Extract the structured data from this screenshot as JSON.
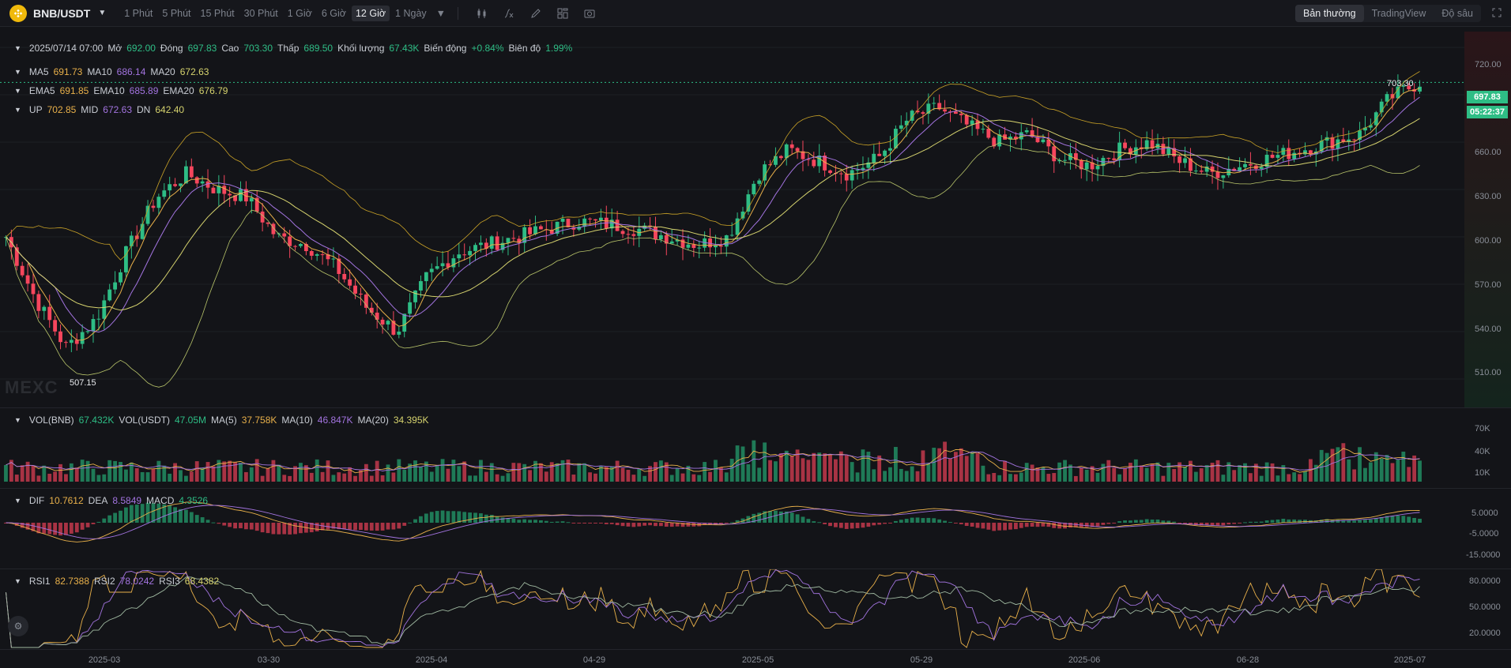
{
  "header": {
    "pair": "BNB/USDT",
    "intervals": [
      "1 Phút",
      "5 Phút",
      "15 Phút",
      "30 Phút",
      "1 Giờ",
      "6 Giờ",
      "12 Giờ",
      "1 Ngày"
    ],
    "active_interval": "12 Giờ",
    "views": [
      "Bản thường",
      "TradingView",
      "Độ sâu"
    ],
    "active_view": "Bản thường"
  },
  "ohlc": {
    "date": "2025/07/14 07:00",
    "open_label": "Mở",
    "open": "692.00",
    "close_label": "Đóng",
    "close": "697.83",
    "high_label": "Cao",
    "high": "703.30",
    "low_label": "Thấp",
    "low": "689.50",
    "vol_label": "Khối lượng",
    "vol": "67.43K",
    "change_label": "Biến động",
    "change": "+0.84%",
    "amp_label": "Biên độ",
    "amp": "1.99%"
  },
  "ma": {
    "ma5_label": "MA5",
    "ma5": "691.73",
    "ma10_label": "MA10",
    "ma10": "686.14",
    "ma20_label": "MA20",
    "ma20": "672.63"
  },
  "ema": {
    "ema5_label": "EMA5",
    "ema5": "691.85",
    "ema10_label": "EMA10",
    "ema10": "685.89",
    "ema20_label": "EMA20",
    "ema20": "676.79"
  },
  "boll": {
    "up_label": "UP",
    "up": "702.85",
    "mid_label": "MID",
    "mid": "672.63",
    "dn_label": "DN",
    "dn": "642.40"
  },
  "volume": {
    "vol_bnb_label": "VOL(BNB)",
    "vol_bnb": "67.432K",
    "vol_usdt_label": "VOL(USDT)",
    "vol_usdt": "47.05M",
    "ma5_label": "MA(5)",
    "ma5": "37.758K",
    "ma10_label": "MA(10)",
    "ma10": "46.847K",
    "ma20_label": "MA(20)",
    "ma20": "34.395K"
  },
  "macd": {
    "dif_label": "DIF",
    "dif": "10.7612",
    "dea_label": "DEA",
    "dea": "8.5849",
    "macd_label": "MACD",
    "macd": "4.3526"
  },
  "rsi": {
    "rsi1_label": "RSI1",
    "rsi1": "82.7388",
    "rsi2_label": "RSI2",
    "rsi2": "78.0242",
    "rsi3_label": "RSI3",
    "rsi3": "68.4382"
  },
  "axes": {
    "price_ticks": [
      "720.00",
      "690.00",
      "660.00",
      "630.00",
      "600.00",
      "570.00",
      "540.00",
      "510.00"
    ],
    "vol_ticks": [
      "70K",
      "40K",
      "10K"
    ],
    "macd_ticks": [
      "5.0000",
      "-5.0000",
      "-15.0000"
    ],
    "rsi_ticks": [
      "80.0000",
      "50.0000",
      "20.0000"
    ],
    "dates": [
      "2025-03",
      "03-30",
      "2025-04",
      "04-29",
      "2025-05",
      "05-29",
      "2025-06",
      "06-28",
      "2025-07"
    ]
  },
  "price_tags": {
    "last": "697.83",
    "countdown": "05:22:37",
    "high_mark": "703.30",
    "low_mark": "507.15"
  },
  "watermark": "MEXC",
  "colors": {
    "up": "#2ebd85",
    "down": "#f6465d",
    "ma5": "#e8b04a",
    "ma10": "#a374e0",
    "ma20": "#d6d36e",
    "background": "#131418"
  },
  "chart_data": {
    "type": "candlestick",
    "title": "BNB/USDT 12 Giờ",
    "approx_close_path": [
      600,
      560,
      530,
      548,
      590,
      625,
      640,
      630,
      625,
      600,
      595,
      580,
      555,
      540,
      575,
      590,
      595,
      600,
      605,
      610,
      608,
      605,
      600,
      595,
      600,
      640,
      655,
      648,
      640,
      650,
      675,
      682,
      670,
      660,
      665,
      650,
      645,
      655,
      660,
      648,
      640,
      645,
      650,
      655,
      660,
      665,
      688,
      698
    ],
    "y_range": [
      500,
      730
    ]
  }
}
